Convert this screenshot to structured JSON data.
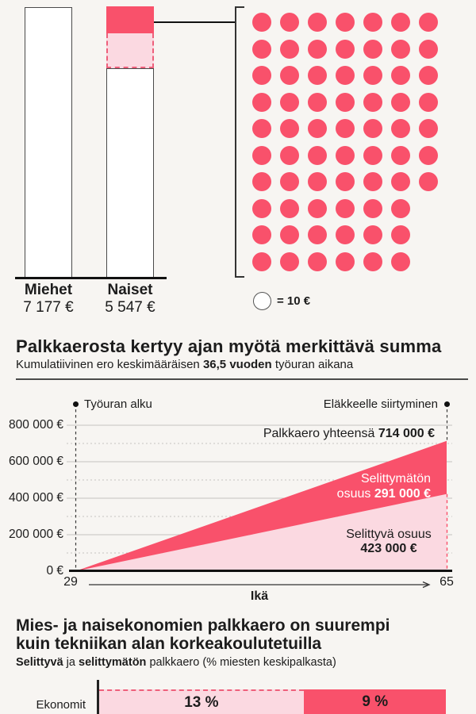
{
  "colors": {
    "red": "#f9516b",
    "pink": "#fbd9e1",
    "dash_red": "#ee5f7b",
    "text": "#1c1c1c",
    "grid": "#c5c3c0",
    "background": "#f7f5f2"
  },
  "salary_chart": {
    "men": {
      "label": "Miehet",
      "value": "7 177 €"
    },
    "women": {
      "label": "Naiset",
      "value": "5 547 €"
    },
    "legend_label": "= 10 €",
    "dot_rows": [
      7,
      7,
      7,
      7,
      7,
      7,
      7,
      6,
      6,
      6
    ]
  },
  "cumulative_chart": {
    "title": "Palkkaerosta kertyy ajan myötä merkittävä summa",
    "subtitle_prefix": "Kumulatiivinen ero keskimääräisen ",
    "subtitle_bold": "36,5 vuoden",
    "subtitle_suffix": " työuran aikana",
    "start_marker": "Työuran alku",
    "end_marker": "Eläkkeelle siirtyminen",
    "total_prefix": "Palkkaero yhteensä ",
    "total_value": "714 000 €",
    "unexplained_line1": "Selittymätön",
    "unexplained_prefix": "osuus ",
    "unexplained_value": "291 000 €",
    "explained_label": "Selittyvä osuus",
    "explained_value": "423 000 €",
    "y_ticks": [
      "800 000 €",
      "600 000 €",
      "400 000 €",
      "200 000 €",
      "0 €"
    ],
    "x_start": "29",
    "x_end": "65",
    "x_label": "Ikä"
  },
  "comparison_chart": {
    "title_line1": "Mies- ja naisekonomien palkkaero on suurempi",
    "title_line2": "kuin tekniikan alan korkeakoulutetuilla",
    "subtitle_bold1": "Selittyvä",
    "subtitle_mid": " ja ",
    "subtitle_bold2": "selittymätön",
    "subtitle_suffix": " palkkaero (% miesten keskipalkasta)",
    "rows": [
      {
        "label": "Ekonomit",
        "explained_label": "13 %",
        "unexplained_label": "9 %"
      }
    ]
  },
  "chart_data": [
    {
      "type": "bar",
      "title": "Monthly salary comparison",
      "categories": [
        "Miehet",
        "Naiset"
      ],
      "values": [
        7177,
        5547
      ],
      "unit": "€",
      "gap_dots_shown": 67,
      "dot_value_eur": 10
    },
    {
      "type": "area",
      "title": "Palkkaerosta kertyy ajan myötä merkittävä summa",
      "x": [
        29,
        65
      ],
      "xlabel": "Ikä",
      "ylim": [
        0,
        800000
      ],
      "series": [
        {
          "name": "Selittyvä osuus",
          "values": [
            0,
            423000
          ]
        },
        {
          "name": "Selittymätön osuus",
          "values": [
            0,
            291000
          ]
        }
      ],
      "total_end": 714000,
      "annotations": [
        "Työuran alku (29)",
        "Eläkkeelle siirtyminen (65)"
      ]
    },
    {
      "type": "bar",
      "title": "Mies- ja naisekonomien palkkaero on suurempi kuin tekniikan alan korkeakoulutetuilla",
      "categories": [
        "Ekonomit"
      ],
      "series": [
        {
          "name": "Selittyvä",
          "values": [
            13
          ]
        },
        {
          "name": "Selittymätön",
          "values": [
            9
          ]
        }
      ],
      "unit": "% miesten keskipalkasta"
    }
  ]
}
